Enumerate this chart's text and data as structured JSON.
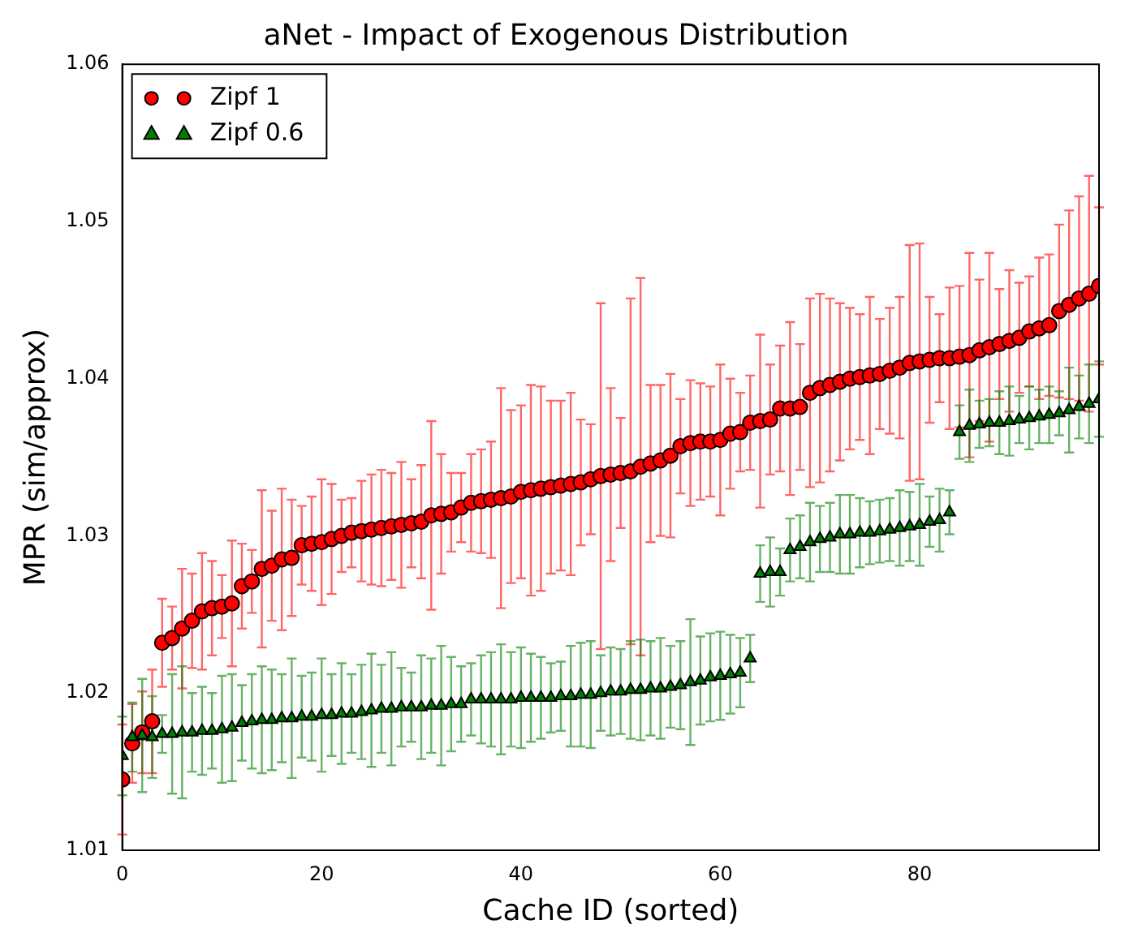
{
  "chart_data": {
    "type": "scatter",
    "title": "aNet - Impact of Exogenous Distribution",
    "xlabel": "Cache ID (sorted)",
    "ylabel": "MPR (sim/approx)",
    "x": [
      0,
      1,
      2,
      3,
      4,
      5,
      6,
      7,
      8,
      9,
      10,
      11,
      12,
      13,
      14,
      15,
      16,
      17,
      18,
      19,
      20,
      21,
      22,
      23,
      24,
      25,
      26,
      27,
      28,
      29,
      30,
      31,
      32,
      33,
      34,
      35,
      36,
      37,
      38,
      39,
      40,
      41,
      42,
      43,
      44,
      45,
      46,
      47,
      48,
      49,
      50,
      51,
      52,
      53,
      54,
      55,
      56,
      57,
      58,
      59,
      60,
      61,
      62,
      63,
      64,
      65,
      66,
      67,
      68,
      69,
      70,
      71,
      72,
      73,
      74,
      75,
      76,
      77,
      78,
      79,
      80,
      81,
      82,
      83,
      84,
      85,
      86,
      87,
      88,
      89,
      90,
      91,
      92,
      93,
      94,
      95,
      96,
      97,
      98
    ],
    "xlim": [
      0,
      98
    ],
    "xticks": [
      0,
      20,
      40,
      60,
      80
    ],
    "ylim": [
      1.01,
      1.06
    ],
    "yticks": [
      1.01,
      1.02,
      1.03,
      1.04,
      1.05,
      1.06
    ],
    "grid": false,
    "legend": "top left",
    "line_style": "none",
    "series": [
      {
        "name": "Zipf 1",
        "color": "#ff0000",
        "marker": "circle",
        "values": [
          1.0145,
          1.0168,
          1.0175,
          1.0182,
          1.0232,
          1.0235,
          1.0241,
          1.0246,
          1.0252,
          1.0254,
          1.0255,
          1.0257,
          1.0268,
          1.0271,
          1.0279,
          1.0281,
          1.0285,
          1.0286,
          1.0294,
          1.0295,
          1.0296,
          1.0298,
          1.03,
          1.0302,
          1.0303,
          1.0304,
          1.0305,
          1.0306,
          1.0307,
          1.0308,
          1.0309,
          1.0313,
          1.0314,
          1.0315,
          1.0318,
          1.0321,
          1.0322,
          1.0323,
          1.0324,
          1.0325,
          1.0328,
          1.0329,
          1.033,
          1.0331,
          1.0332,
          1.0333,
          1.0334,
          1.0336,
          1.0338,
          1.0339,
          1.034,
          1.0341,
          1.0344,
          1.0346,
          1.0348,
          1.0351,
          1.0357,
          1.0359,
          1.036,
          1.036,
          1.0361,
          1.0365,
          1.0366,
          1.0372,
          1.0373,
          1.0374,
          1.0381,
          1.0381,
          1.0382,
          1.0391,
          1.0394,
          1.0396,
          1.0398,
          1.04,
          1.0401,
          1.0402,
          1.0403,
          1.0405,
          1.0407,
          1.041,
          1.0411,
          1.0412,
          1.0413,
          1.0413,
          1.0414,
          1.0415,
          1.0418,
          1.042,
          1.0422,
          1.0424,
          1.0426,
          1.043,
          1.0432,
          1.0434,
          1.0443,
          1.0447,
          1.0451,
          1.0454,
          1.0459
        ],
        "errors": [
          0.0035,
          0.0025,
          0.0026,
          0.0033,
          0.0028,
          0.002,
          0.0038,
          0.003,
          0.0037,
          0.003,
          0.002,
          0.004,
          0.0027,
          0.002,
          0.005,
          0.0035,
          0.0045,
          0.0037,
          0.0025,
          0.003,
          0.004,
          0.0035,
          0.0023,
          0.0022,
          0.0032,
          0.0035,
          0.0037,
          0.0034,
          0.004,
          0.0028,
          0.0036,
          0.006,
          0.0038,
          0.0025,
          0.0022,
          0.0031,
          0.0033,
          0.0037,
          0.007,
          0.0055,
          0.0055,
          0.0067,
          0.0065,
          0.0055,
          0.0054,
          0.0058,
          0.004,
          0.0035,
          0.011,
          0.0055,
          0.0035,
          0.011,
          0.012,
          0.005,
          0.0048,
          0.0052,
          0.003,
          0.004,
          0.0037,
          0.0035,
          0.0048,
          0.0035,
          0.0025,
          0.003,
          0.0055,
          0.0035,
          0.004,
          0.0055,
          0.004,
          0.006,
          0.006,
          0.0055,
          0.005,
          0.0045,
          0.004,
          0.005,
          0.0035,
          0.004,
          0.0045,
          0.0075,
          0.0075,
          0.004,
          0.0028,
          0.0045,
          0.0045,
          0.0065,
          0.0045,
          0.006,
          0.0035,
          0.0045,
          0.0035,
          0.0035,
          0.0045,
          0.0045,
          0.0055,
          0.006,
          0.0065,
          0.0075,
          0.005
        ]
      },
      {
        "name": "Zipf 0.6",
        "color": "#007f00",
        "marker": "triangle",
        "values": [
          1.016,
          1.0172,
          1.0173,
          1.0172,
          1.0174,
          1.0174,
          1.0175,
          1.0175,
          1.0176,
          1.0176,
          1.0177,
          1.0178,
          1.0181,
          1.0182,
          1.0183,
          1.0183,
          1.0184,
          1.0184,
          1.0185,
          1.0185,
          1.0186,
          1.0186,
          1.0187,
          1.0187,
          1.0188,
          1.0189,
          1.019,
          1.019,
          1.0191,
          1.0191,
          1.0191,
          1.0192,
          1.0192,
          1.0193,
          1.0193,
          1.0196,
          1.0196,
          1.0196,
          1.0196,
          1.0196,
          1.0197,
          1.0197,
          1.0197,
          1.0197,
          1.0198,
          1.0198,
          1.0199,
          1.0199,
          1.02,
          1.0201,
          1.0201,
          1.0202,
          1.0202,
          1.0203,
          1.0203,
          1.0204,
          1.0205,
          1.0207,
          1.0208,
          1.021,
          1.0211,
          1.0212,
          1.0213,
          1.0222,
          1.0276,
          1.0277,
          1.0277,
          1.0291,
          1.0293,
          1.0296,
          1.0298,
          1.0299,
          1.0301,
          1.0301,
          1.0302,
          1.0302,
          1.0303,
          1.0304,
          1.0305,
          1.0306,
          1.0307,
          1.0309,
          1.031,
          1.0315,
          1.0366,
          1.037,
          1.0371,
          1.0372,
          1.0372,
          1.0373,
          1.0374,
          1.0375,
          1.0376,
          1.0377,
          1.0378,
          1.038,
          1.0382,
          1.0384,
          1.0387
        ],
        "errors": [
          0.0025,
          0.0022,
          0.0036,
          0.0026,
          0.0012,
          0.0038,
          0.0042,
          0.0025,
          0.0028,
          0.0024,
          0.0034,
          0.0034,
          0.0024,
          0.003,
          0.0034,
          0.0032,
          0.0028,
          0.0038,
          0.0026,
          0.0028,
          0.0036,
          0.0026,
          0.0032,
          0.0025,
          0.003,
          0.0036,
          0.0028,
          0.0036,
          0.0025,
          0.0022,
          0.0033,
          0.003,
          0.0038,
          0.003,
          0.0024,
          0.0023,
          0.0028,
          0.003,
          0.0035,
          0.003,
          0.0032,
          0.0028,
          0.0026,
          0.0022,
          0.0022,
          0.0032,
          0.0033,
          0.0034,
          0.0024,
          0.0028,
          0.0027,
          0.0031,
          0.0032,
          0.003,
          0.0032,
          0.0026,
          0.0028,
          0.004,
          0.0028,
          0.0028,
          0.0028,
          0.0025,
          0.0022,
          0.0015,
          0.0018,
          0.0022,
          0.0015,
          0.002,
          0.002,
          0.0025,
          0.0021,
          0.0022,
          0.0025,
          0.0025,
          0.0022,
          0.002,
          0.002,
          0.002,
          0.0024,
          0.0022,
          0.0026,
          0.0016,
          0.002,
          0.0014,
          0.0017,
          0.0023,
          0.0015,
          0.0015,
          0.002,
          0.0022,
          0.0015,
          0.002,
          0.0017,
          0.0018,
          0.0014,
          0.0027,
          0.002,
          0.0025,
          0.0024
        ]
      }
    ]
  }
}
